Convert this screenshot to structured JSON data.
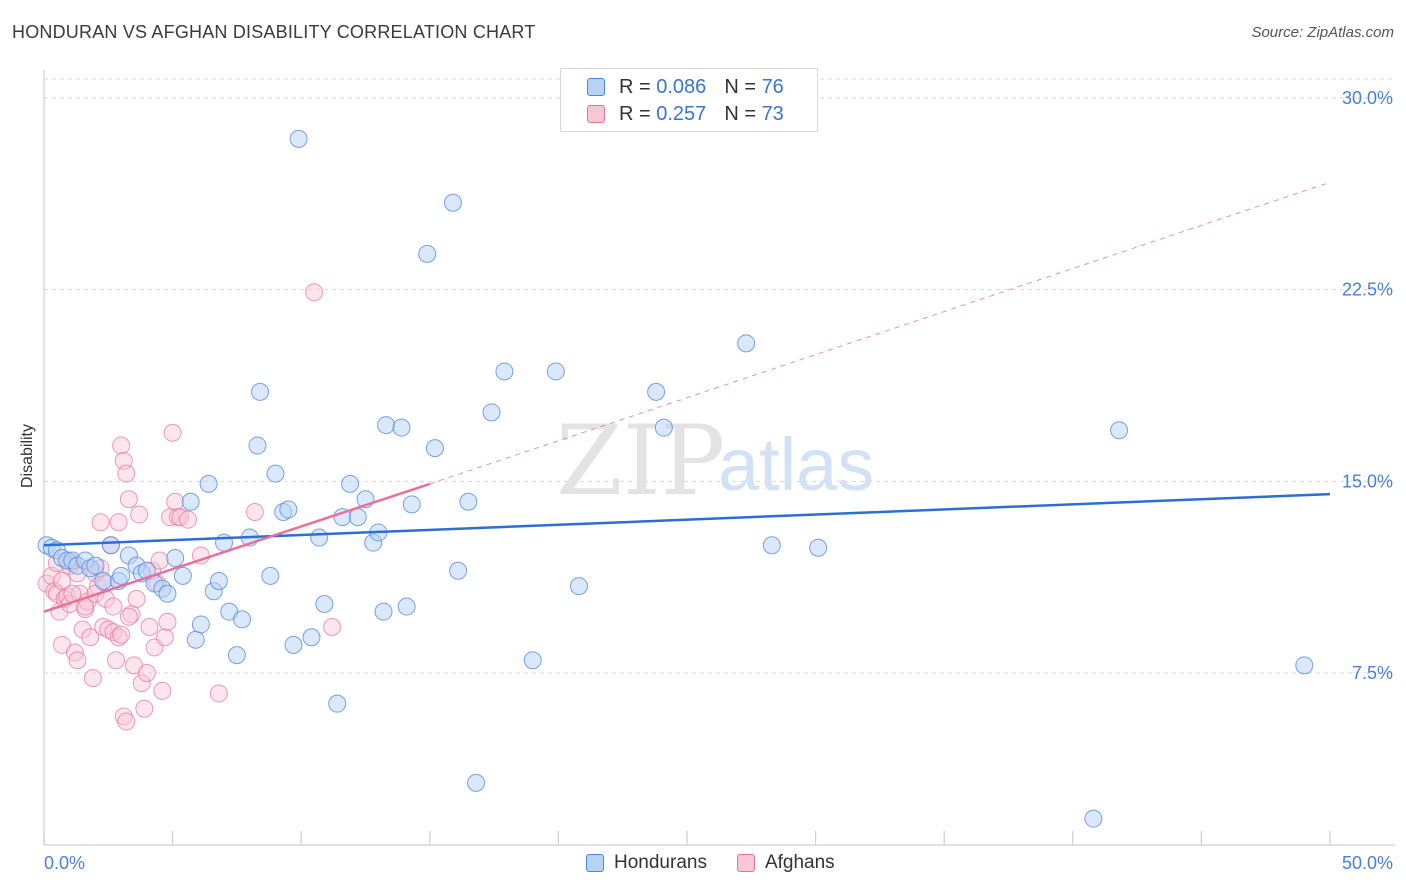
{
  "header": {
    "title": "HONDURAN VS AFGHAN DISABILITY CORRELATION CHART",
    "source": "Source: ZipAtlas.com"
  },
  "colors": {
    "blue": "#4a86e0",
    "blue_fill": "#b8d2f4",
    "pink": "#e8709a",
    "pink_fill": "#f9c6d6",
    "axis_text": "#4a7fd6"
  },
  "legend": {
    "r_label": "R =",
    "n_label": "N =",
    "series": [
      {
        "name": "Hondurans",
        "r": "0.086",
        "n": "76"
      },
      {
        "name": "Afghans",
        "r": "0.257",
        "n": "73"
      }
    ]
  },
  "watermark": {
    "zip": "ZIP",
    "atlas": "atlas"
  },
  "chart_data": {
    "type": "scatter",
    "title": "HONDURAN VS AFGHAN DISABILITY CORRELATION CHART",
    "xlabel": "",
    "ylabel": "Disability",
    "xlim": [
      0,
      50
    ],
    "ylim": [
      0,
      31.5
    ],
    "x_tick_labels": [
      "0.0%",
      "50.0%"
    ],
    "y_ticks": [
      7.5,
      15.0,
      22.5,
      30.0
    ],
    "y_tick_labels": [
      "7.5%",
      "15.0%",
      "22.5%",
      "30.0%"
    ],
    "grid": true,
    "legend_position": "top-center",
    "series": [
      {
        "name": "Hondurans",
        "r": 0.086,
        "n": 76,
        "trend": {
          "x0": 0,
          "y0": 12.5,
          "x1": 50,
          "y1": 14.5
        },
        "points": [
          [
            0.1,
            12.5
          ],
          [
            0.3,
            12.4
          ],
          [
            0.5,
            12.3
          ],
          [
            0.7,
            12.0
          ],
          [
            0.9,
            11.9
          ],
          [
            1.1,
            11.9
          ],
          [
            1.3,
            11.7
          ],
          [
            1.6,
            11.9
          ],
          [
            1.8,
            11.6
          ],
          [
            2.0,
            11.7
          ],
          [
            2.3,
            11.1
          ],
          [
            2.6,
            12.5
          ],
          [
            2.9,
            11.1
          ],
          [
            3.0,
            11.3
          ],
          [
            3.3,
            12.1
          ],
          [
            3.6,
            11.7
          ],
          [
            3.8,
            11.4
          ],
          [
            4.0,
            11.5
          ],
          [
            4.3,
            11.0
          ],
          [
            4.6,
            10.8
          ],
          [
            4.8,
            10.6
          ],
          [
            5.1,
            12.0
          ],
          [
            5.4,
            11.3
          ],
          [
            5.7,
            14.2
          ],
          [
            5.9,
            8.8
          ],
          [
            6.1,
            9.4
          ],
          [
            6.4,
            14.9
          ],
          [
            6.6,
            10.7
          ],
          [
            6.8,
            11.1
          ],
          [
            7.0,
            12.6
          ],
          [
            7.2,
            9.9
          ],
          [
            7.5,
            8.2
          ],
          [
            7.7,
            9.6
          ],
          [
            8.0,
            12.8
          ],
          [
            8.3,
            16.4
          ],
          [
            8.4,
            18.5
          ],
          [
            8.8,
            11.3
          ],
          [
            9.0,
            15.3
          ],
          [
            9.3,
            13.8
          ],
          [
            9.5,
            13.9
          ],
          [
            9.7,
            8.6
          ],
          [
            9.9,
            28.4
          ],
          [
            10.4,
            8.9
          ],
          [
            10.7,
            12.8
          ],
          [
            10.9,
            10.2
          ],
          [
            11.4,
            6.3
          ],
          [
            11.6,
            13.6
          ],
          [
            11.9,
            14.9
          ],
          [
            12.2,
            13.6
          ],
          [
            12.5,
            14.3
          ],
          [
            12.8,
            12.6
          ],
          [
            13.0,
            13.0
          ],
          [
            13.2,
            9.9
          ],
          [
            13.3,
            17.2
          ],
          [
            13.9,
            17.1
          ],
          [
            14.1,
            10.1
          ],
          [
            14.3,
            14.1
          ],
          [
            14.9,
            23.9
          ],
          [
            15.2,
            16.3
          ],
          [
            15.9,
            25.9
          ],
          [
            16.1,
            11.5
          ],
          [
            16.5,
            14.2
          ],
          [
            16.8,
            3.2
          ],
          [
            17.4,
            17.7
          ],
          [
            17.9,
            19.3
          ],
          [
            19.0,
            8.0
          ],
          [
            19.9,
            19.3
          ],
          [
            20.8,
            10.9
          ],
          [
            23.8,
            18.5
          ],
          [
            24.1,
            17.1
          ],
          [
            27.3,
            20.4
          ],
          [
            28.3,
            12.5
          ],
          [
            30.1,
            12.4
          ],
          [
            40.8,
            1.8
          ],
          [
            41.8,
            17.0
          ],
          [
            49.0,
            7.8
          ]
        ]
      },
      {
        "name": "Afghans",
        "r": 0.257,
        "n": 73,
        "trend": {
          "x0": 0,
          "y0": 9.9,
          "x1": 15,
          "y1": 14.9,
          "dashed_to_x": 50,
          "dashed_to_y": 26.7
        },
        "points": [
          [
            0.1,
            11.0
          ],
          [
            0.3,
            11.3
          ],
          [
            0.4,
            10.7
          ],
          [
            0.5,
            10.6
          ],
          [
            0.6,
            9.9
          ],
          [
            0.7,
            8.6
          ],
          [
            0.8,
            10.4
          ],
          [
            0.9,
            10.5
          ],
          [
            1.0,
            10.2
          ],
          [
            1.1,
            11.8
          ],
          [
            1.2,
            8.3
          ],
          [
            1.3,
            8.0
          ],
          [
            1.4,
            10.6
          ],
          [
            1.5,
            9.2
          ],
          [
            1.6,
            10.0
          ],
          [
            1.7,
            10.3
          ],
          [
            1.8,
            8.9
          ],
          [
            1.9,
            7.3
          ],
          [
            2.0,
            11.4
          ],
          [
            2.1,
            10.9
          ],
          [
            2.2,
            13.4
          ],
          [
            2.3,
            9.3
          ],
          [
            2.4,
            11.0
          ],
          [
            2.5,
            9.2
          ],
          [
            2.6,
            12.5
          ],
          [
            2.7,
            9.1
          ],
          [
            2.8,
            8.0
          ],
          [
            2.9,
            8.9
          ],
          [
            3.0,
            16.4
          ],
          [
            3.1,
            15.8
          ],
          [
            3.2,
            15.3
          ],
          [
            3.3,
            14.3
          ],
          [
            3.4,
            9.8
          ],
          [
            3.5,
            7.8
          ],
          [
            3.6,
            10.4
          ],
          [
            3.7,
            13.7
          ],
          [
            3.8,
            7.1
          ],
          [
            3.9,
            6.1
          ],
          [
            4.0,
            7.5
          ],
          [
            4.1,
            9.3
          ],
          [
            4.2,
            11.5
          ],
          [
            4.3,
            8.5
          ],
          [
            4.4,
            11.0
          ],
          [
            4.5,
            11.9
          ],
          [
            4.6,
            6.8
          ],
          [
            4.7,
            8.9
          ],
          [
            4.8,
            9.5
          ],
          [
            4.9,
            13.6
          ],
          [
            5.0,
            16.9
          ],
          [
            5.1,
            14.2
          ],
          [
            5.2,
            13.6
          ],
          [
            5.3,
            13.6
          ],
          [
            5.6,
            13.5
          ],
          [
            6.1,
            12.1
          ],
          [
            6.8,
            6.7
          ],
          [
            8.2,
            13.8
          ],
          [
            10.5,
            22.4
          ],
          [
            11.2,
            9.3
          ],
          [
            3.1,
            5.8
          ],
          [
            3.2,
            5.6
          ],
          [
            0.5,
            11.8
          ],
          [
            0.7,
            11.1
          ],
          [
            1.0,
            11.7
          ],
          [
            1.1,
            10.6
          ],
          [
            1.3,
            11.4
          ],
          [
            1.6,
            10.1
          ],
          [
            2.0,
            10.6
          ],
          [
            2.2,
            11.6
          ],
          [
            2.4,
            10.4
          ],
          [
            2.7,
            10.1
          ],
          [
            3.0,
            9.0
          ],
          [
            3.3,
            9.7
          ],
          [
            2.9,
            13.4
          ]
        ]
      }
    ]
  }
}
